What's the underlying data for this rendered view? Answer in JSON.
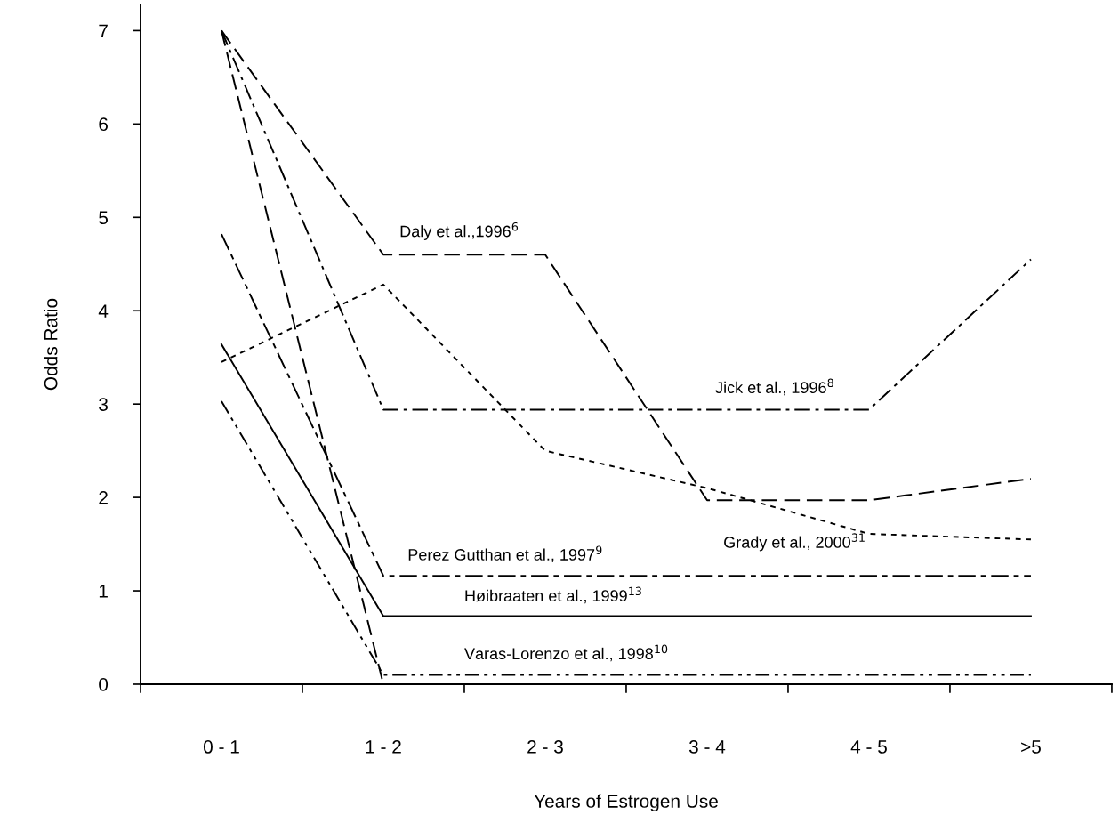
{
  "chart_data": {
    "type": "line",
    "xlabel": "Years of Estrogen Use",
    "ylabel": "Odds Ratio",
    "categories": [
      "0 - 1",
      "1 - 2",
      "2 - 3",
      "3 - 4",
      "4 - 5",
      ">5"
    ],
    "ylim": [
      0,
      7.28
    ],
    "yticks": [
      0,
      1,
      2,
      3,
      4,
      5,
      6,
      7
    ],
    "grid": false,
    "legend": false,
    "marker": "none",
    "series": [
      {
        "name": "Daly et al.,1996$^{6}$",
        "color": "#000000",
        "line_style": "dashed",
        "values": [
          7.0,
          4.6,
          4.6,
          1.97,
          1.97,
          2.2
        ]
      },
      {
        "name": "Grady et al., 2000$^{31}$",
        "color": "#000000",
        "line_style": "dotted",
        "values": [
          3.45,
          4.28,
          2.5,
          2.1,
          1.61,
          1.55
        ]
      },
      {
        "name": "Jick et al., 1996$^{8}$",
        "color": "#000000",
        "line_style": "dashdot",
        "values": [
          7.0,
          2.94,
          2.94,
          2.94,
          2.94,
          4.55
        ]
      },
      {
        "name": "Perez Gutthan et al., 1997$^{9}$",
        "color": "#000000",
        "line_style": "longdashdot",
        "values": [
          4.82,
          1.16,
          1.16,
          1.16,
          1.16,
          1.16
        ]
      },
      {
        "name": "Høibraaten et al., 1999$^{13}$",
        "color": "#000000",
        "line_style": "solid",
        "values": [
          3.64,
          0.73,
          0.73,
          0.73,
          0.73,
          0.73
        ]
      },
      {
        "name": "Varas-Lorenzo et al., 1998$^{10}$",
        "color": "#000000",
        "line_style": "dashdotdot",
        "values": [
          3.03,
          0.1,
          0.1,
          0.1,
          0.1,
          0.1
        ]
      },
      {
        "color": "#000000",
        "line_style": "dashed",
        "values": [
          7.0,
          0,
          null,
          null,
          null,
          null
        ]
      }
    ]
  }
}
